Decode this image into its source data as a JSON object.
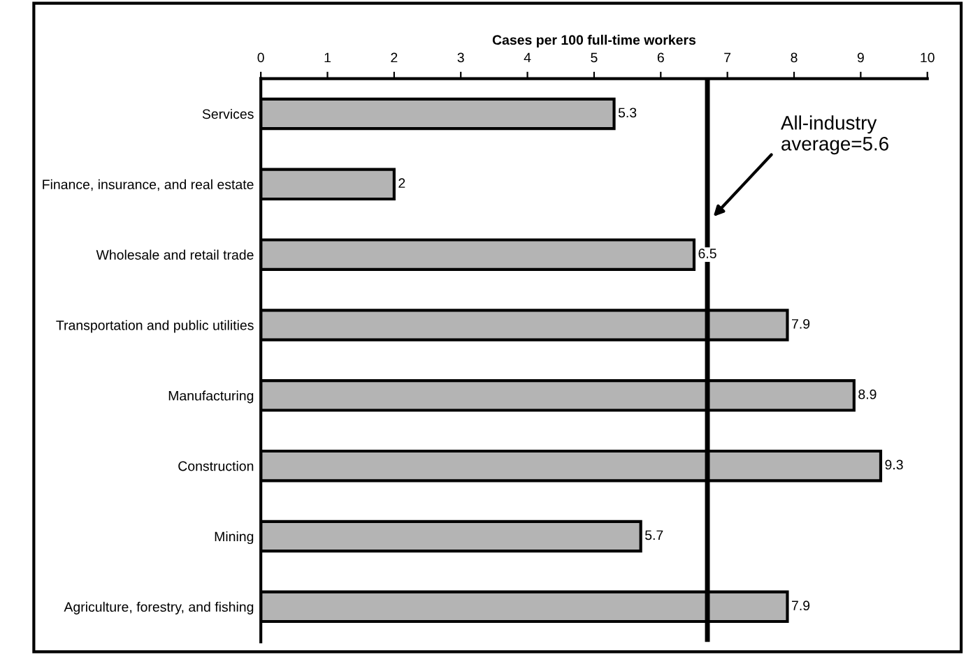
{
  "chart_data": {
    "type": "bar",
    "orientation": "horizontal",
    "xlabel": "Cases per 100 full-time workers",
    "categories": [
      "Services",
      "Finance, insurance, and real estate",
      "Wholesale and retail trade",
      "Transportation and public utilities",
      "Manufacturing",
      "Construction",
      "Mining",
      "Agriculture, forestry, and fishing"
    ],
    "values": [
      5.3,
      2,
      6.5,
      7.9,
      8.9,
      9.3,
      5.7,
      7.9
    ],
    "color": "#b4b4b4",
    "data_labels": true,
    "xlim": [
      0,
      10
    ],
    "xticks": [
      0,
      1,
      2,
      3,
      4,
      5,
      6,
      7,
      8,
      9,
      10
    ],
    "grid": false,
    "ref_lines": [
      {
        "axis": "x",
        "value": 6.7,
        "color": "#000000"
      }
    ],
    "annotations": [
      "All-industry\naverage=5.6"
    ]
  }
}
